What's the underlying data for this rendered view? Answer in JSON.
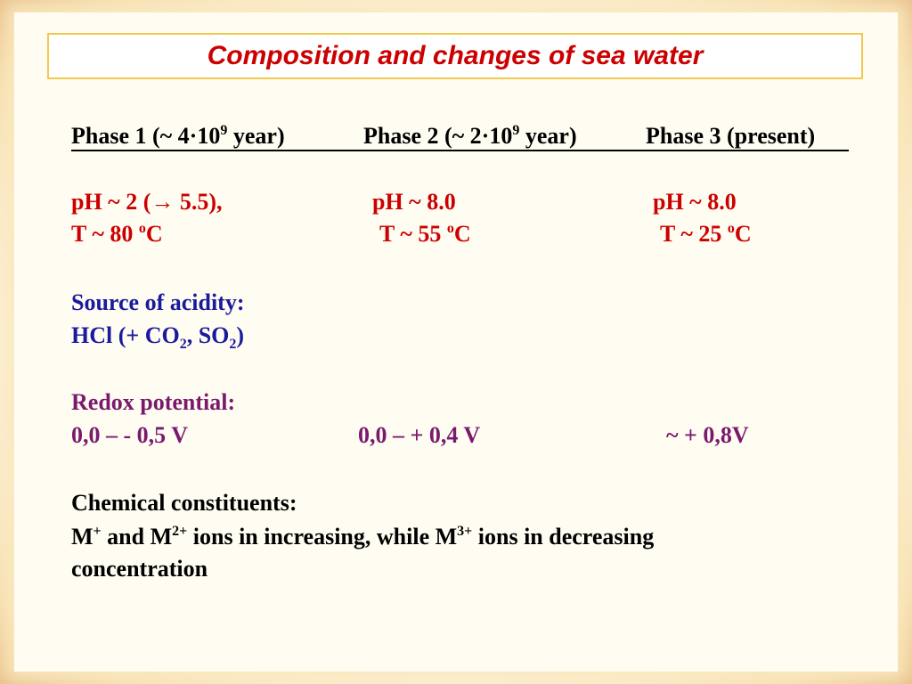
{
  "title": "Composition and changes of sea water",
  "phases": {
    "p1_prefix": "Phase 1 (~ 4·10",
    "p1_exp": "9",
    "p1_suffix": " year)",
    "p2_prefix": "Phase 2 (~ 2·10",
    "p2_exp": "9",
    "p2_suffix": " year)",
    "p3": "Phase 3 (present)"
  },
  "ph": {
    "p1": "pH ~ 2 (→ 5.5),",
    "p2": "pH ~ 8.0",
    "p3": "pH ~ 8.0"
  },
  "temperature": {
    "p1_prefix": "T  ~ 80 ",
    "p2_prefix": "T ~ 55 ",
    "p3_prefix": "T ~ 25 ",
    "deg": "o",
    "unit": "C"
  },
  "acidity": {
    "heading": "Source of acidity:",
    "hcl": "HCl (+ CO",
    "sub1": "2",
    "mid": ", SO",
    "sub2": "2",
    "close": ")"
  },
  "redox": {
    "heading": "Redox potential:",
    "p1": "0,0 – - 0,5 V",
    "p2": "0,0 – + 0,4 V",
    "p3": "~ + 0,8V"
  },
  "constituents": {
    "heading": "Chemical constituents:",
    "m1": "M",
    "sup1": "+",
    "and": " and M",
    "sup2": "2+",
    "mid": " ions in increasing, while M",
    "sup3": "3+",
    "end": " ions in decreasing",
    "line3": "concentration"
  }
}
